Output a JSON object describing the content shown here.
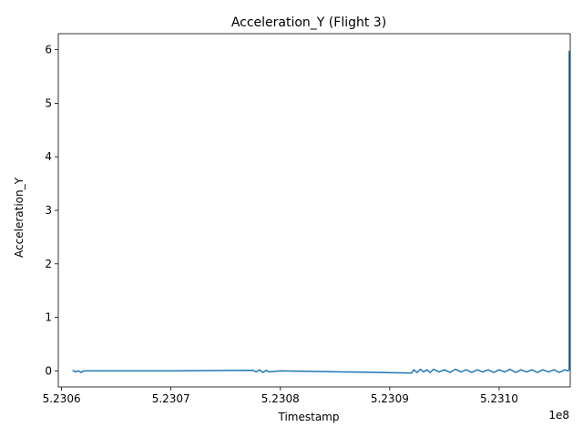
{
  "chart_data": {
    "type": "line",
    "title": "Acceleration_Y (Flight 3)",
    "xlabel": "Timestamp",
    "ylabel": "Acceleration_Y",
    "x_offset_label": "1e8",
    "xlim": [
      5.230597,
      5.231065
    ],
    "ylim": [
      -0.3,
      6.3
    ],
    "xticks": [
      5.2306,
      5.2307,
      5.2308,
      5.2309,
      5.231
    ],
    "xtick_labels": [
      "5.2306",
      "5.2307",
      "5.2308",
      "5.2309",
      "5.2310"
    ],
    "yticks": [
      0,
      1,
      2,
      3,
      4,
      5,
      6
    ],
    "ytick_labels": [
      "0",
      "1",
      "2",
      "3",
      "4",
      "5",
      "6"
    ],
    "grid": false,
    "line_color": "#1f77b4",
    "series": [
      {
        "x": [
          5.23061,
          5.230613,
          5.230615,
          5.230618,
          5.23062,
          5.2307,
          5.230775,
          5.230778,
          5.230781,
          5.230784,
          5.230787,
          5.23079,
          5.2308,
          5.23092,
          5.230922,
          5.230925,
          5.230928,
          5.230931,
          5.230934,
          5.230937,
          5.23094,
          5.230945,
          5.23095,
          5.230955,
          5.23096,
          5.230965,
          5.23097,
          5.230975,
          5.23098,
          5.230985,
          5.23099,
          5.230995,
          5.231,
          5.231005,
          5.23101,
          5.231015,
          5.23102,
          5.231025,
          5.23103,
          5.231035,
          5.23104,
          5.231045,
          5.23105,
          5.231055,
          5.23106,
          5.231063,
          5.231064,
          5.231064
        ],
        "y": [
          0.01,
          -0.02,
          0.0,
          -0.03,
          0.0,
          0.0,
          0.01,
          -0.02,
          0.02,
          -0.03,
          0.01,
          -0.02,
          0.0,
          -0.04,
          0.02,
          -0.03,
          0.03,
          -0.02,
          0.02,
          -0.03,
          0.03,
          -0.02,
          0.02,
          -0.03,
          0.03,
          -0.02,
          0.02,
          -0.03,
          0.02,
          -0.02,
          0.02,
          -0.03,
          0.02,
          -0.02,
          0.03,
          -0.03,
          0.02,
          -0.02,
          0.02,
          -0.03,
          0.02,
          -0.02,
          0.02,
          -0.03,
          0.02,
          0.0,
          0.02,
          5.98
        ]
      }
    ]
  }
}
